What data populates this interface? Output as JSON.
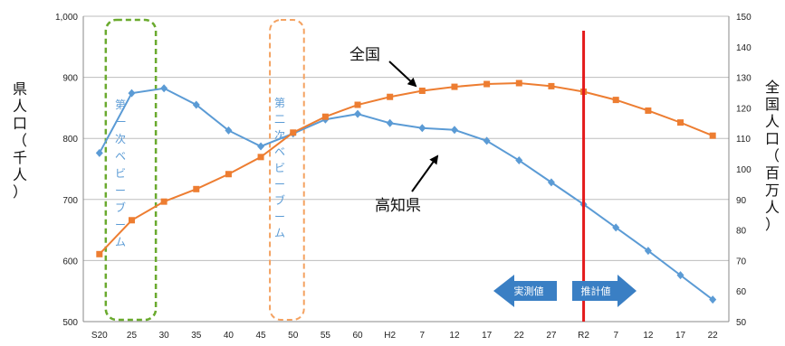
{
  "chart_data": {
    "type": "line",
    "categories": [
      "S20",
      "25",
      "30",
      "35",
      "40",
      "45",
      "50",
      "55",
      "60",
      "H2",
      "7",
      "12",
      "17",
      "22",
      "27",
      "R2",
      "7",
      "12",
      "17",
      "22"
    ],
    "y_left": {
      "label": "県人口（千人）",
      "range": [
        500,
        1000
      ],
      "ticks": [
        "500",
        "600",
        "700",
        "800",
        "900",
        "1,000"
      ],
      "tick_values": [
        500,
        600,
        700,
        800,
        900,
        1000
      ]
    },
    "y_right": {
      "label": "全国人口（百万人）",
      "range": [
        50,
        150
      ],
      "ticks": [
        "50",
        "60",
        "70",
        "80",
        "90",
        "100",
        "110",
        "120",
        "130",
        "140",
        "150"
      ],
      "tick_values": [
        50,
        60,
        70,
        80,
        90,
        100,
        110,
        120,
        130,
        140,
        150
      ]
    },
    "grid": true,
    "series": [
      {
        "name": "高知県",
        "axis": "left",
        "color": "#5b9bd5",
        "marker": "diamond",
        "values": [
          776,
          874,
          882,
          855,
          813,
          787,
          808,
          831,
          840,
          825,
          817,
          814,
          796,
          764,
          728,
          692,
          654,
          616,
          576,
          536
        ]
      },
      {
        "name": "全国",
        "axis": "right",
        "color": "#ed7d31",
        "marker": "square",
        "values": [
          72.1,
          83.2,
          89.3,
          93.4,
          98.3,
          103.9,
          111.9,
          117.1,
          121.0,
          123.6,
          125.6,
          126.9,
          127.8,
          128.1,
          127.1,
          125.3,
          122.6,
          119.1,
          115.2,
          110.9
        ]
      }
    ],
    "annotations": {
      "boom1": "第一次ベビーブーム",
      "boom2": "第二次ベビーブーム",
      "label_national": "全国",
      "label_kochi": "高知県",
      "actual": "実測値",
      "estimate": "推計値"
    },
    "colors": {
      "boom1": "#6aaa2e",
      "boom2": "#f4a261",
      "divider": "#e41a1c",
      "arrow_fill": "#3a7fc4"
    }
  }
}
